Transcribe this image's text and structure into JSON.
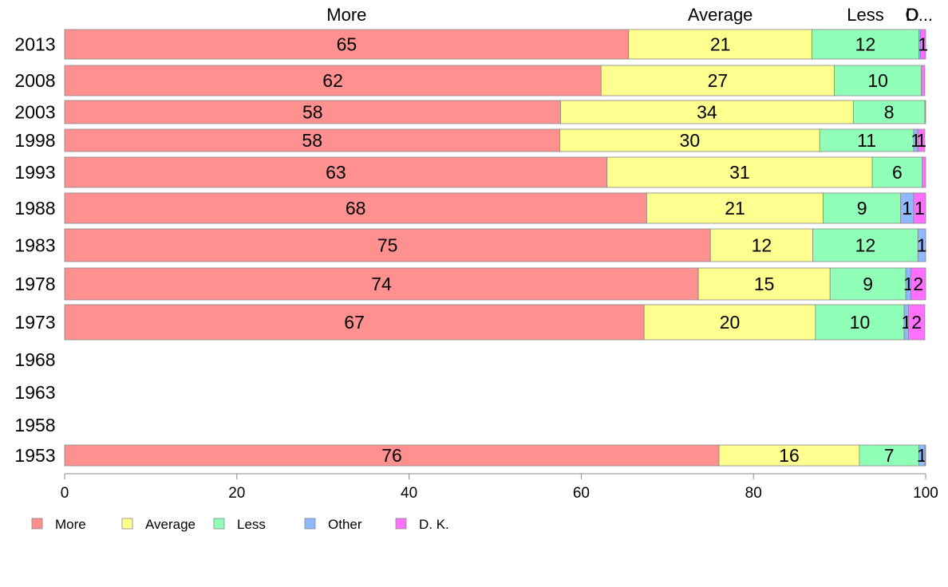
{
  "chart_data": {
    "type": "bar",
    "orientation": "horizontal",
    "stacked": true,
    "categories": [
      "2013",
      "2008",
      "2003",
      "1998",
      "1993",
      "1988",
      "1983",
      "1978",
      "1973",
      "1968",
      "1963",
      "1958",
      "1953"
    ],
    "series": [
      {
        "name": "More",
        "color": "#ff9090",
        "values": [
          65.5,
          62.3,
          57.6,
          57.5,
          63.0,
          67.6,
          75.0,
          73.6,
          67.3,
          null,
          null,
          null,
          76.0
        ]
      },
      {
        "name": "Average",
        "color": "#ffff90",
        "values": [
          21.3,
          27.1,
          34.0,
          30.2,
          30.8,
          20.5,
          11.9,
          15.3,
          19.9,
          null,
          null,
          null,
          16.3
        ]
      },
      {
        "name": "Less",
        "color": "#90ffb8",
        "values": [
          12.4,
          10.1,
          8.3,
          10.9,
          5.8,
          9.0,
          12.2,
          8.8,
          10.3,
          null,
          null,
          null,
          6.9
        ]
      },
      {
        "name": "Other",
        "color": "#90b8ff",
        "values": [
          0.2,
          0.0,
          0.0,
          0.5,
          0.0,
          1.5,
          0.9,
          0.6,
          0.5,
          null,
          null,
          null,
          0.7
        ]
      },
      {
        "name": "D. K.",
        "color": "#ff70ff",
        "values": [
          0.6,
          0.4,
          0.1,
          0.8,
          0.4,
          1.4,
          0.0,
          1.7,
          1.9,
          null,
          null,
          null,
          0.1
        ]
      }
    ],
    "data_labels": [
      [
        "65",
        "21",
        "12",
        "",
        "1"
      ],
      [
        "62",
        "27",
        "10",
        "",
        ""
      ],
      [
        "58",
        "34",
        "8",
        "",
        ""
      ],
      [
        "58",
        "30",
        "11",
        "1",
        "1"
      ],
      [
        "63",
        "31",
        "6",
        "",
        ""
      ],
      [
        "68",
        "21",
        "9",
        "1",
        "1"
      ],
      [
        "75",
        "12",
        "12",
        "1",
        ""
      ],
      [
        "74",
        "15",
        "9",
        "1",
        "2"
      ],
      [
        "67",
        "20",
        "10",
        "1",
        "2"
      ],
      [
        "",
        "",
        "",
        "",
        ""
      ],
      [
        "",
        "",
        "",
        "",
        ""
      ],
      [
        "",
        "",
        "",
        "",
        ""
      ],
      [
        "76",
        "16",
        "7",
        "1",
        ""
      ]
    ],
    "top_labels": [
      "More",
      "Average",
      "Less",
      "O",
      "D..."
    ],
    "xlim": [
      0,
      100
    ],
    "xticks": [
      "0",
      "20",
      "40",
      "60",
      "80",
      "100"
    ],
    "grid": false,
    "legend": {
      "placement": "bottom-left",
      "entries": [
        "More",
        "Average",
        "Less",
        "Other",
        "D. K."
      ]
    },
    "title": "",
    "xlabel": "",
    "ylabel": ""
  }
}
